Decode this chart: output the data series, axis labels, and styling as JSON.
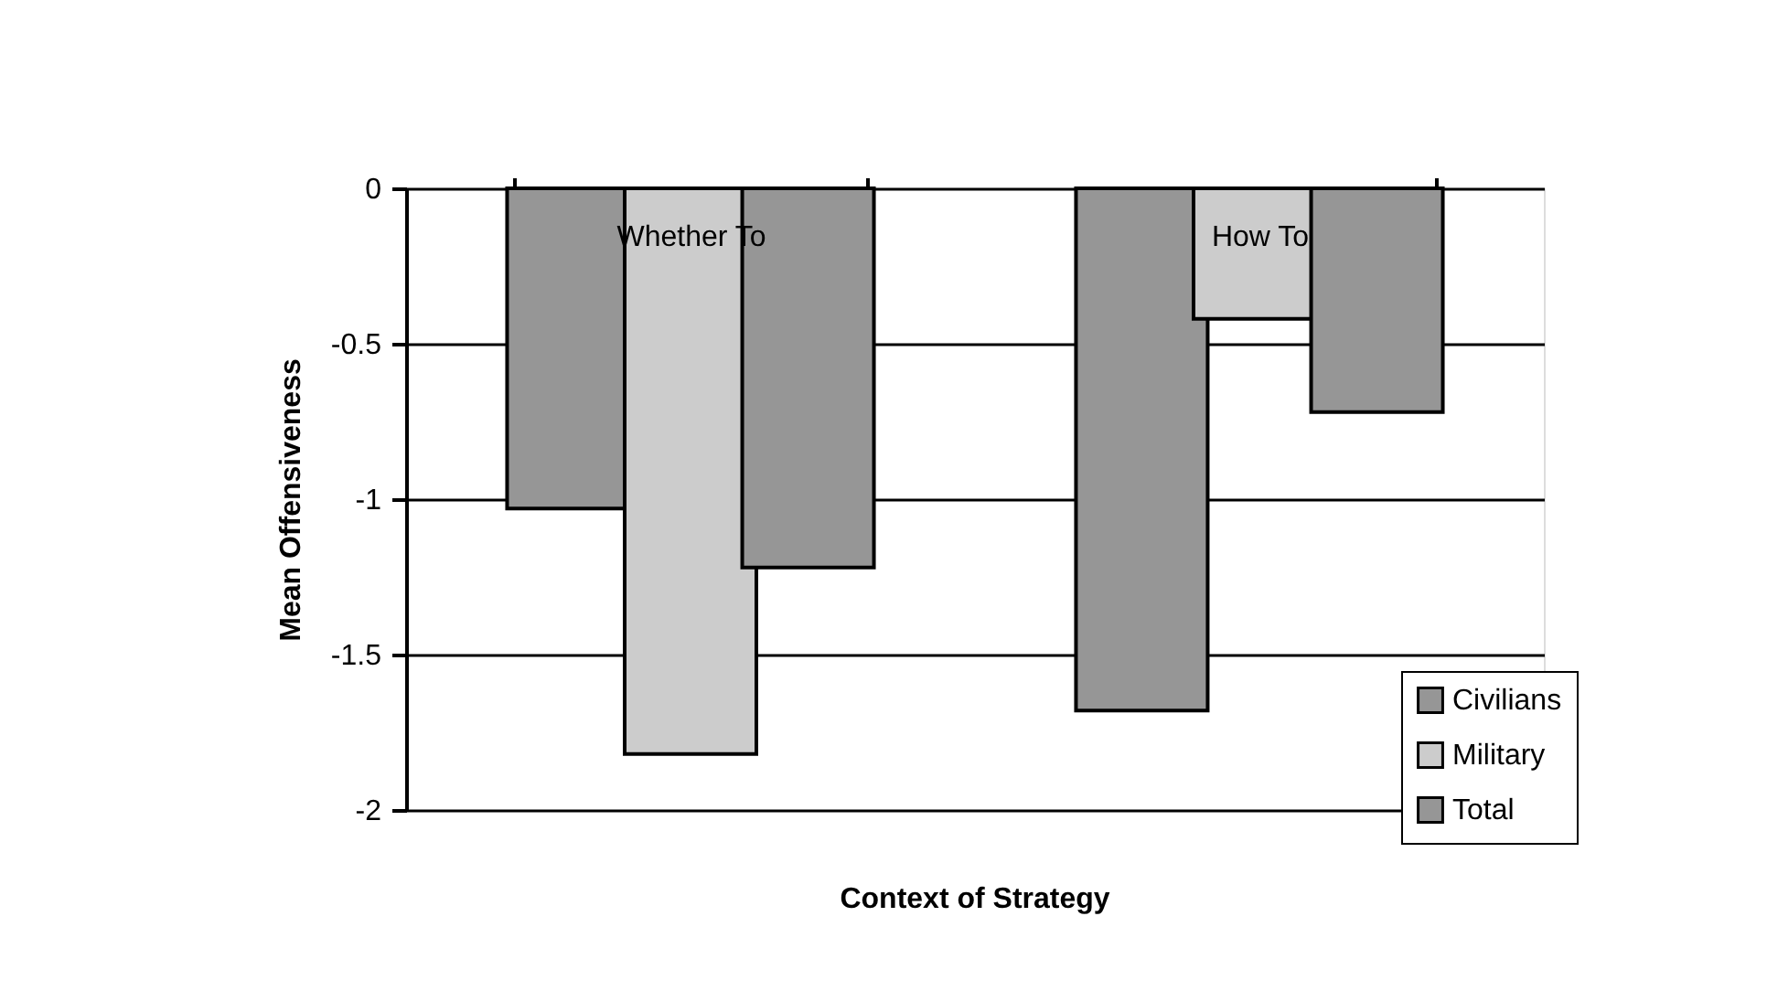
{
  "chart_data": {
    "type": "bar",
    "xlabel": "Context of Strategy",
    "ylabel": "Mean Offensiveness",
    "categories": [
      "Whether To",
      "How To"
    ],
    "series": [
      {
        "name": "Civilians",
        "color": "#969696",
        "values": [
          -1.03,
          -1.68
        ]
      },
      {
        "name": "Military",
        "color": "#cccccc",
        "values": [
          -1.82,
          -0.42
        ]
      },
      {
        "name": "Total",
        "color": "#969696",
        "values": [
          -1.22,
          -0.72
        ]
      }
    ],
    "ylim": [
      -2,
      0
    ],
    "yticks": [
      -2,
      -1.5,
      -1,
      -0.5,
      0
    ],
    "grid": "y",
    "legend": "bottom right"
  }
}
